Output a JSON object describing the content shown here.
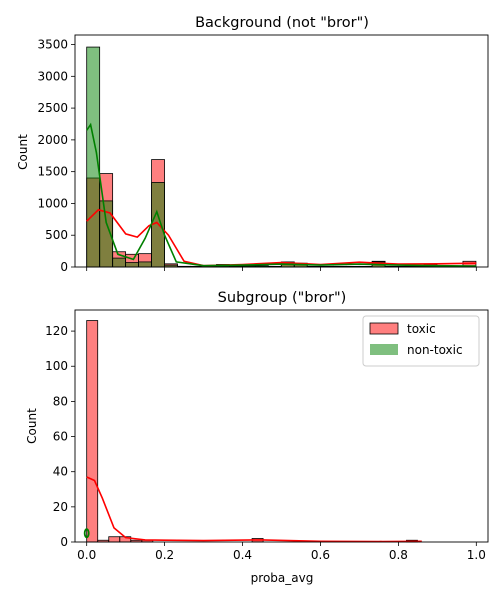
{
  "chart_data": [
    {
      "type": "histogram",
      "title": "Background (not \"bror\")",
      "xlabel": "",
      "ylabel": "Count",
      "xlim": [
        -0.03,
        1.03
      ],
      "ylim": [
        0,
        3650
      ],
      "x_ticks": [
        0.0,
        0.2,
        0.4,
        0.6,
        0.8,
        1.0
      ],
      "x_tick_labels_visible": false,
      "y_ticks": [
        0,
        500,
        1000,
        1500,
        2000,
        2500,
        3000,
        3500
      ],
      "y_tick_labels": [
        "0",
        "500",
        "1000",
        "1500",
        "2000",
        "2500",
        "3000",
        "3500"
      ],
      "bins": {
        "start": 0.0,
        "width": 0.0333,
        "count": 30
      },
      "series": [
        {
          "name": "toxic",
          "color": "#ff0000",
          "counts": [
            1400,
            1470,
            240,
            200,
            210,
            1690,
            50,
            10,
            10,
            10,
            10,
            10,
            10,
            10,
            10,
            80,
            60,
            10,
            10,
            10,
            10,
            10,
            90,
            10,
            10,
            10,
            40,
            10,
            10,
            90
          ],
          "kde": [
            [
              0.0,
              720
            ],
            [
              0.03,
              900
            ],
            [
              0.06,
              850
            ],
            [
              0.1,
              520
            ],
            [
              0.13,
              470
            ],
            [
              0.16,
              650
            ],
            [
              0.18,
              700
            ],
            [
              0.21,
              500
            ],
            [
              0.25,
              90
            ],
            [
              0.3,
              20
            ],
            [
              0.4,
              40
            ],
            [
              0.5,
              70
            ],
            [
              0.6,
              40
            ],
            [
              0.7,
              75
            ],
            [
              0.8,
              45
            ],
            [
              0.9,
              50
            ],
            [
              1.0,
              60
            ]
          ]
        },
        {
          "name": "non-toxic",
          "color": "#008000",
          "counts": [
            3460,
            1040,
            140,
            70,
            80,
            1330,
            30,
            10,
            10,
            10,
            40,
            20,
            20,
            20,
            10,
            50,
            50,
            10,
            10,
            10,
            10,
            10,
            80,
            10,
            10,
            10,
            10,
            10,
            10,
            10
          ],
          "kde": [
            [
              0.0,
              2150
            ],
            [
              0.01,
              2240
            ],
            [
              0.025,
              1800
            ],
            [
              0.05,
              700
            ],
            [
              0.08,
              200
            ],
            [
              0.12,
              120
            ],
            [
              0.15,
              450
            ],
            [
              0.18,
              870
            ],
            [
              0.2,
              500
            ],
            [
              0.23,
              80
            ],
            [
              0.3,
              20
            ],
            [
              0.4,
              30
            ],
            [
              0.5,
              45
            ],
            [
              0.6,
              30
            ],
            [
              0.7,
              45
            ],
            [
              0.8,
              30
            ],
            [
              0.9,
              20
            ],
            [
              1.0,
              15
            ]
          ]
        }
      ]
    },
    {
      "type": "histogram",
      "title": "Subgroup (\"bror\")",
      "xlabel": "proba_avg",
      "ylabel": "Count",
      "xlim": [
        -0.03,
        1.03
      ],
      "ylim": [
        0,
        132
      ],
      "x_ticks": [
        0.0,
        0.2,
        0.4,
        0.6,
        0.8,
        1.0
      ],
      "x_tick_labels": [
        "0.0",
        "0.2",
        "0.4",
        "0.6",
        "0.8",
        "1.0"
      ],
      "y_ticks": [
        0,
        20,
        40,
        60,
        80,
        100,
        120
      ],
      "y_tick_labels": [
        "0",
        "20",
        "40",
        "60",
        "80",
        "100",
        "120"
      ],
      "legend": {
        "position": "top-right",
        "entries": [
          "toxic",
          "non-toxic"
        ]
      },
      "series": [
        {
          "name": "toxic",
          "color": "#ff0000",
          "bins": {
            "start": 0.0,
            "width": 0.0283,
            "count": 30
          },
          "counts": [
            126,
            1,
            3,
            3,
            1,
            1,
            0,
            0,
            0,
            0,
            0,
            0,
            0,
            0,
            0,
            2,
            0,
            0,
            0,
            0,
            0,
            0,
            0,
            0,
            0,
            0,
            0,
            0,
            0,
            1
          ],
          "kde": [
            [
              0.0,
              37
            ],
            [
              0.02,
              35
            ],
            [
              0.04,
              25
            ],
            [
              0.07,
              8
            ],
            [
              0.1,
              2.5
            ],
            [
              0.15,
              1.2
            ],
            [
              0.2,
              1
            ],
            [
              0.3,
              0.8
            ],
            [
              0.45,
              1.2
            ],
            [
              0.6,
              0.4
            ],
            [
              0.75,
              0.3
            ],
            [
              0.86,
              0.4
            ]
          ]
        },
        {
          "name": "non-toxic",
          "color": "#008000",
          "points": [
            [
              0.0,
              5
            ]
          ]
        }
      ]
    }
  ]
}
